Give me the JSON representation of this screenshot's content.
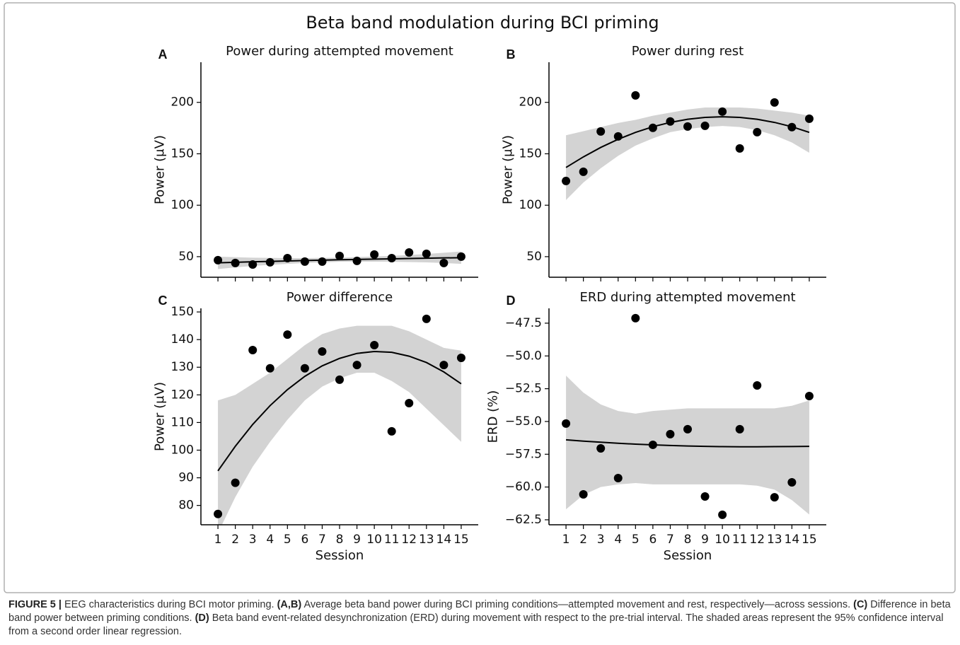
{
  "figure_title": "Beta band modulation during BCI priming",
  "caption": {
    "label": "FIGURE 5 |",
    "parts": [
      {
        "text": " EEG characteristics during BCI motor priming. ",
        "bold": false
      },
      {
        "text": "(A,B)",
        "bold": true
      },
      {
        "text": " Average beta band power during BCI priming conditions—attempted movement and rest, respectively—across sessions. ",
        "bold": false
      },
      {
        "text": "(C)",
        "bold": true
      },
      {
        "text": " Difference in beta band power between priming conditions. ",
        "bold": false
      },
      {
        "text": "(D)",
        "bold": true
      },
      {
        "text": " Beta band event-related desynchronization (ERD) during movement with respect to the pre-trial interval. The shaded areas represent the 95% confidence interval from a second order linear regression.",
        "bold": false
      }
    ]
  },
  "chart_data": [
    {
      "type": "scatter",
      "panel_label": "A",
      "title": "Power during attempted movement",
      "ylabel": "Power (μV)",
      "x": [
        1,
        2,
        3,
        4,
        5,
        6,
        7,
        8,
        9,
        10,
        11,
        12,
        13,
        14,
        15
      ],
      "values": [
        46.6,
        43.8,
        42.4,
        44.5,
        48.6,
        45.2,
        45.2,
        50.7,
        45.9,
        52.1,
        48.6,
        54.1,
        52.8,
        43.8,
        50.0
      ],
      "color": "#000000",
      "fit": {
        "values": [
          44.0,
          44.5,
          45.0,
          45.4,
          45.8,
          46.2,
          46.6,
          47.0,
          47.3,
          47.6,
          47.9,
          48.2,
          48.5,
          48.8,
          49.0
        ],
        "ci_lower": [
          38,
          39.5,
          41,
          42,
          43,
          43.8,
          44.4,
          45,
          45,
          45,
          45,
          44.8,
          44.4,
          43.8,
          43
        ],
        "ci_upper": [
          50,
          49.5,
          49,
          48.8,
          48.6,
          48.6,
          48.8,
          49,
          49.6,
          50.2,
          50.8,
          51.6,
          52.6,
          53.8,
          55
        ],
        "color": "#000000",
        "band_color": "#d3d3d3"
      },
      "xlim": [
        0.02,
        15.98
      ],
      "ylim": [
        30,
        239
      ],
      "xticks": [
        1,
        2,
        3,
        4,
        5,
        6,
        7,
        8,
        9,
        10,
        11,
        12,
        13,
        14,
        15
      ],
      "show_xtick_labels": false,
      "yticks": [
        50,
        100,
        150,
        200
      ]
    },
    {
      "type": "scatter",
      "panel_label": "B",
      "title": "Power during rest",
      "ylabel": "Power (μV)",
      "x": [
        1,
        2,
        3,
        4,
        5,
        6,
        7,
        8,
        9,
        10,
        11,
        12,
        13,
        14,
        15
      ],
      "values": [
        123.6,
        132.5,
        171.7,
        166.9,
        206.8,
        175.2,
        181.4,
        176.5,
        177.2,
        191.0,
        155.2,
        171.0,
        199.9,
        175.9,
        184.1
      ],
      "color": "#000000",
      "fit": {
        "values": [
          136.7,
          147.0,
          156.2,
          164.1,
          170.8,
          176.3,
          180.5,
          183.6,
          185.4,
          186.0,
          185.4,
          183.6,
          180.5,
          176.3,
          170.8
        ],
        "ci_lower": [
          105,
          122,
          136,
          148,
          158,
          165,
          171,
          174,
          176,
          177,
          176,
          173,
          168,
          161,
          151
        ],
        "ci_upper": [
          168,
          172,
          176,
          180,
          183,
          187,
          190,
          193,
          195,
          195,
          195,
          194,
          192,
          190,
          187
        ],
        "color": "#000000",
        "band_color": "#d3d3d3"
      },
      "xlim": [
        0.02,
        15.98
      ],
      "ylim": [
        30,
        239
      ],
      "xticks": [
        1,
        2,
        3,
        4,
        5,
        6,
        7,
        8,
        9,
        10,
        11,
        12,
        13,
        14,
        15
      ],
      "show_xtick_labels": false,
      "yticks": [
        50,
        100,
        150,
        200
      ]
    },
    {
      "type": "scatter",
      "panel_label": "C",
      "title": "Power difference",
      "ylabel": "Power (μV)",
      "xlabel": "Session",
      "x": [
        1,
        2,
        3,
        4,
        5,
        6,
        7,
        8,
        9,
        10,
        11,
        12,
        13,
        14,
        15
      ],
      "values": [
        76.9,
        88.2,
        136.2,
        129.6,
        141.8,
        129.6,
        135.7,
        125.5,
        130.8,
        138.0,
        106.8,
        117.0,
        147.5,
        130.8,
        133.4
      ],
      "color": "#000000",
      "fit": {
        "values": [
          92.5,
          101.4,
          109.3,
          116.1,
          121.9,
          126.7,
          130.5,
          133.2,
          135.0,
          135.7,
          135.4,
          134.0,
          131.7,
          128.3,
          124.0
        ],
        "ci_lower": [
          70,
          83,
          94,
          103,
          111,
          118,
          123,
          126,
          128,
          128,
          125,
          121,
          115,
          109,
          103
        ],
        "ci_upper": [
          118,
          120,
          124,
          128,
          133,
          138,
          142,
          144,
          145,
          145,
          145,
          143,
          140,
          137,
          136
        ],
        "color": "#000000",
        "band_color": "#d3d3d3"
      },
      "xlim": [
        0.02,
        15.98
      ],
      "ylim": [
        73,
        151.3
      ],
      "xticks": [
        1,
        2,
        3,
        4,
        5,
        6,
        7,
        8,
        9,
        10,
        11,
        12,
        13,
        14,
        15
      ],
      "show_xtick_labels": true,
      "yticks": [
        80,
        90,
        100,
        110,
        120,
        130,
        140,
        150
      ]
    },
    {
      "type": "scatter",
      "panel_label": "D",
      "title": "ERD during attempted movement",
      "ylabel": "ERD (%)",
      "xlabel": "Session",
      "x": [
        1,
        2,
        3,
        4,
        5,
        6,
        7,
        8,
        9,
        10,
        11,
        12,
        13,
        14,
        15
      ],
      "values": [
        -55.16,
        -60.56,
        -57.05,
        -59.32,
        -47.12,
        -56.78,
        -55.97,
        -55.59,
        -60.72,
        -62.12,
        -55.59,
        -52.25,
        -60.78,
        -59.64,
        -53.06
      ],
      "color": "#000000",
      "fit": {
        "values": [
          -56.4,
          -56.5,
          -56.58,
          -56.66,
          -56.73,
          -56.78,
          -56.83,
          -56.87,
          -56.9,
          -56.92,
          -56.93,
          -56.93,
          -56.92,
          -56.91,
          -56.9
        ],
        "ci_lower": [
          -61.7,
          -60.6,
          -60.0,
          -59.8,
          -59.7,
          -59.8,
          -59.8,
          -59.8,
          -59.8,
          -59.8,
          -59.8,
          -59.9,
          -60.2,
          -61.0,
          -62.1
        ],
        "ci_upper": [
          -51.5,
          -52.8,
          -53.7,
          -54.2,
          -54.4,
          -54.2,
          -54.1,
          -54.0,
          -54.0,
          -54.0,
          -54.0,
          -54.0,
          -54.0,
          -53.8,
          -53.4
        ],
        "color": "#000000",
        "band_color": "#d3d3d3"
      },
      "xlim": [
        0.02,
        15.98
      ],
      "ylim": [
        -62.88,
        -46.37
      ],
      "xticks": [
        1,
        2,
        3,
        4,
        5,
        6,
        7,
        8,
        9,
        10,
        11,
        12,
        13,
        14,
        15
      ],
      "show_xtick_labels": true,
      "yticks": [
        {
          "value": -47.5,
          "label": "−47.5"
        },
        {
          "value": -50,
          "label": "−50.0"
        },
        {
          "value": -52.5,
          "label": "−52.5"
        },
        {
          "value": -55,
          "label": "−55.0"
        },
        {
          "value": -57.5,
          "label": "−57.5"
        },
        {
          "value": -60,
          "label": "−60.0"
        },
        {
          "value": -62.5,
          "label": "−62.5"
        }
      ]
    }
  ]
}
